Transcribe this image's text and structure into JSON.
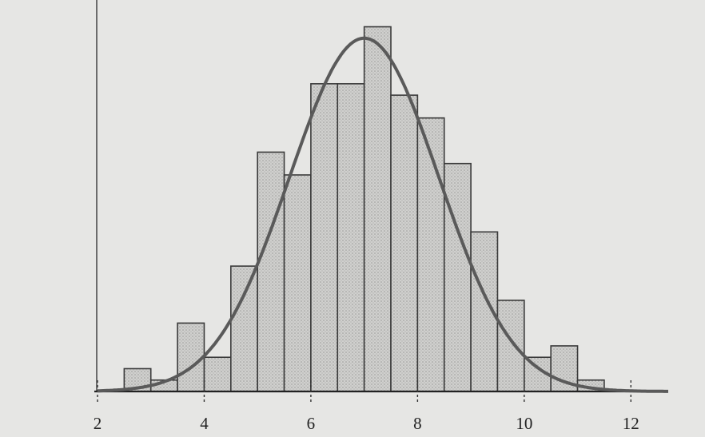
{
  "chart_data": {
    "type": "histogram",
    "bins": [
      2.5,
      3,
      3.5,
      4,
      4.5,
      5,
      5.5,
      6,
      6.5,
      7,
      7.5,
      8,
      8.5,
      9,
      9.5,
      10,
      10.5,
      11,
      11.5,
      12,
      12.5
    ],
    "values": [
      2,
      1,
      6,
      3,
      11,
      21,
      19,
      27,
      27,
      32,
      26,
      24,
      20,
      14,
      8,
      3,
      4,
      1,
      0,
      0
    ],
    "color": "#c9c9c7",
    "edge_color": "#3a3a3a",
    "xlim": [
      2,
      12.7
    ],
    "ylim": [
      0,
      34
    ],
    "xticks": [
      2,
      4,
      6,
      8,
      10,
      12
    ],
    "curve": {
      "mean": 7,
      "sd": 1.4,
      "peak": 31,
      "color": "#5a5a5a"
    }
  }
}
